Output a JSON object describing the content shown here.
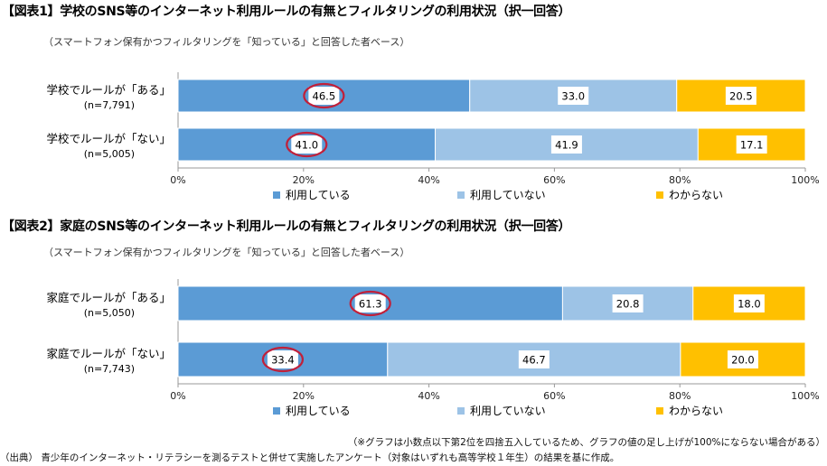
{
  "chart_data": [
    {
      "type": "bar",
      "orientation": "horizontal",
      "stacked": true,
      "title": "【図表1】学校のSNS等のインターネット利用ルールの有無とフィルタリングの利用状況（択一回答）",
      "subtitle": "（スマートフォン保有かつフィルタリングを「知っている」と回答した者ベース）",
      "categories": [
        {
          "label": "学校でルールが「ある」",
          "n": "(n=7,791)"
        },
        {
          "label": "学校でルールが「ない」",
          "n": "(n=5,005)"
        }
      ],
      "series": [
        {
          "name": "利用している",
          "values": [
            46.5,
            41.0
          ]
        },
        {
          "name": "利用していない",
          "values": [
            33.0,
            41.9
          ]
        },
        {
          "name": "わからない",
          "values": [
            20.5,
            17.1
          ]
        }
      ],
      "xlim": [
        0,
        100
      ],
      "xticks": [
        "0%",
        "20%",
        "40%",
        "60%",
        "80%",
        "100%"
      ],
      "highlighted_series": "利用している",
      "legend": "bottom"
    },
    {
      "type": "bar",
      "orientation": "horizontal",
      "stacked": true,
      "title": "【図表2】家庭のSNS等のインターネット利用ルールの有無とフィルタリングの利用状況（択一回答）",
      "subtitle": "（スマートフォン保有かつフィルタリングを「知っている」と回答した者ベース）",
      "categories": [
        {
          "label": "家庭でルールが「ある」",
          "n": "(n=5,050)"
        },
        {
          "label": "家庭でルールが「ない」",
          "n": "(n=7,743)"
        }
      ],
      "series": [
        {
          "name": "利用している",
          "values": [
            61.3,
            33.4
          ]
        },
        {
          "name": "利用していない",
          "values": [
            20.8,
            46.7
          ]
        },
        {
          "name": "わからない",
          "values": [
            18.0,
            20.0
          ]
        }
      ],
      "xlim": [
        0,
        100
      ],
      "xticks": [
        "0%",
        "20%",
        "40%",
        "60%",
        "80%",
        "100%"
      ],
      "highlighted_series": "利用している",
      "legend": "bottom"
    }
  ],
  "colors": {
    "series": [
      "#5b9bd5",
      "#9dc3e6",
      "#ffc000"
    ],
    "highlight_ring": "#c0203a",
    "axis": "#999999"
  },
  "note": "（※グラフは小数点以下第2位を四捨五入しているため、グラフの値の足し上げが100%にならない場合がある）",
  "source": "（出典） 青少年のインターネット・リテラシーを測るテストと併せて実施したアンケート（対象はいずれも高等学校１年生）の結果を基に作成。"
}
